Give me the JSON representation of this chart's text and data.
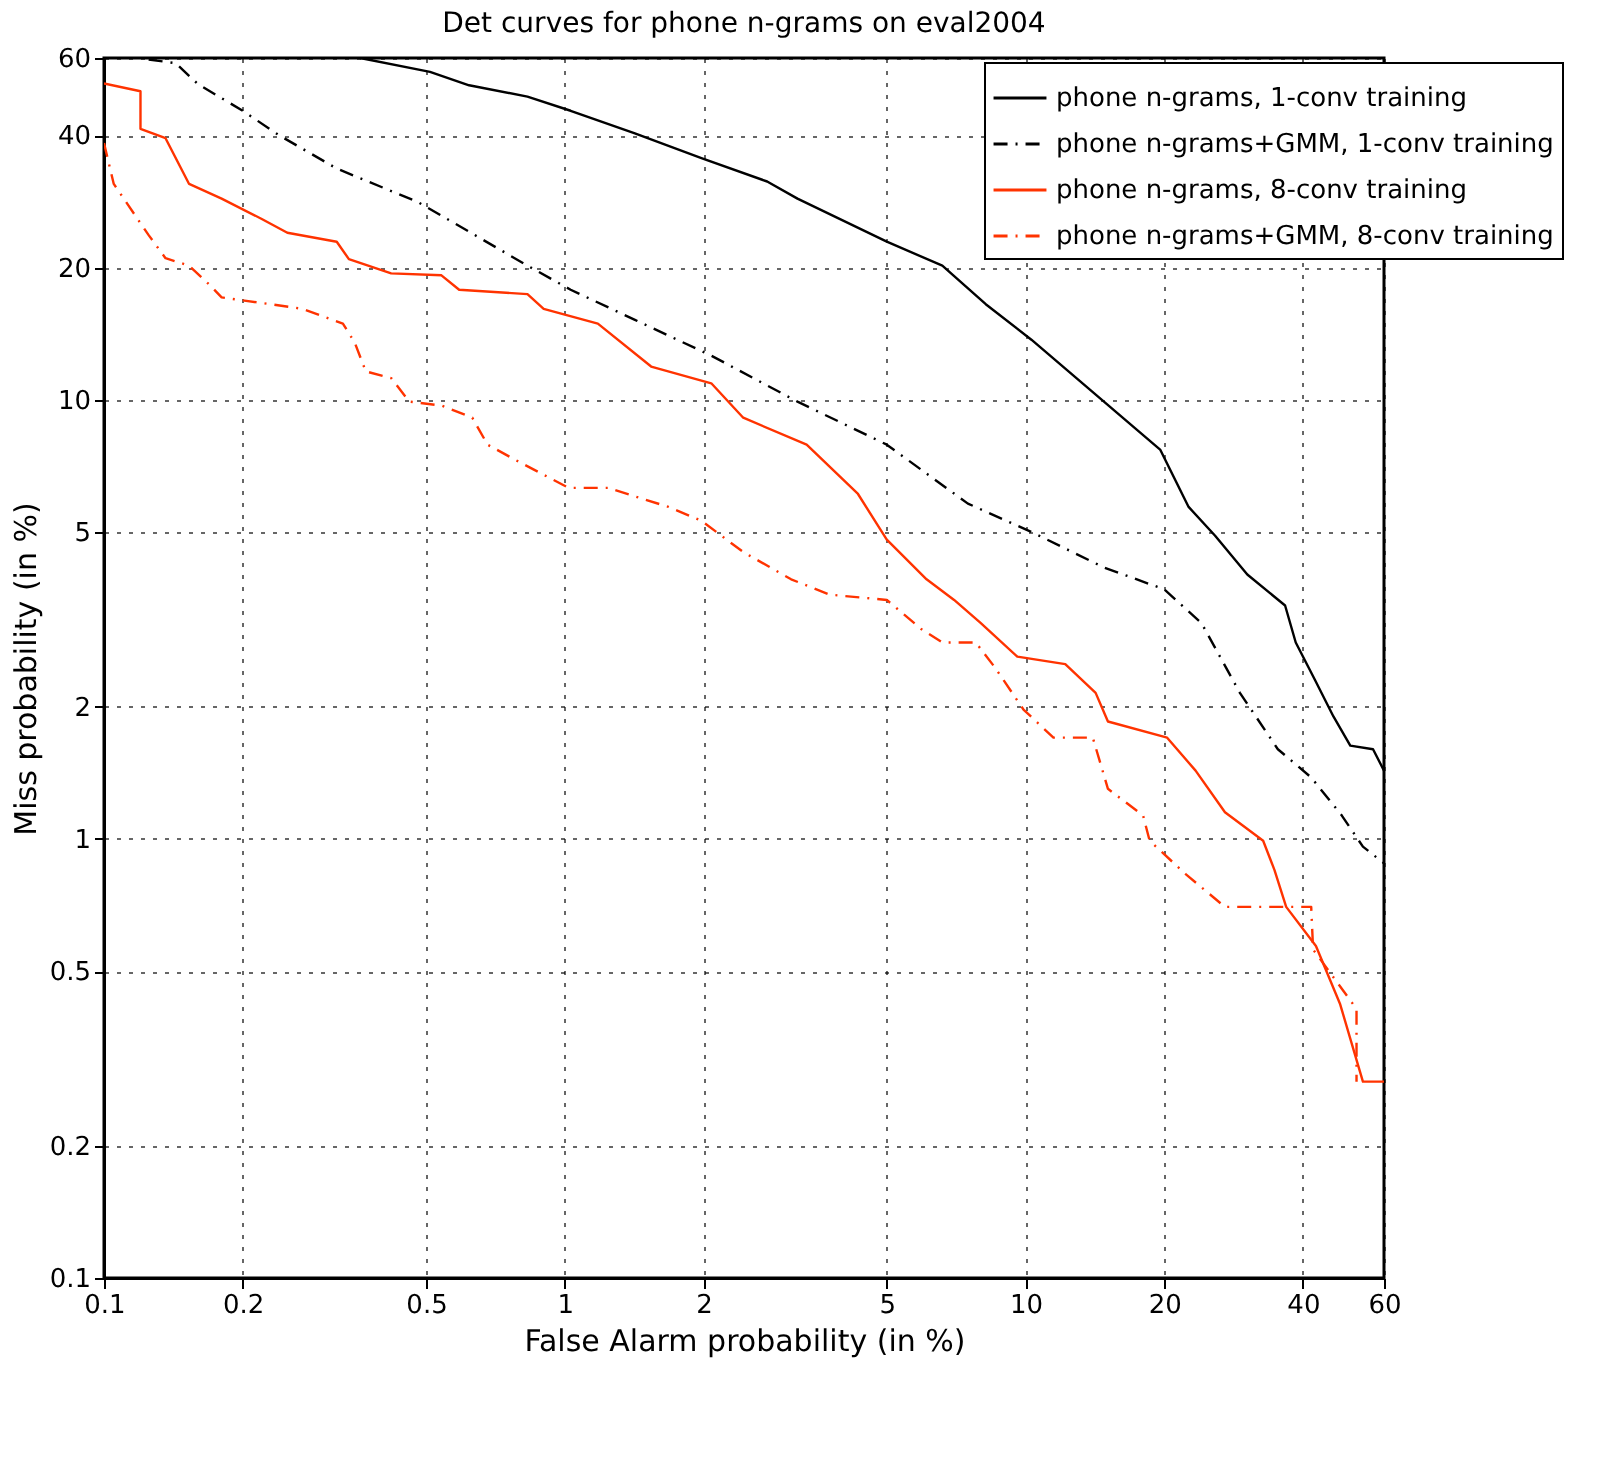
{
  "chart_data": {
    "type": "line",
    "title": "Det curves for phone n-grams on eval2004",
    "xlabel": "False Alarm probability (in %)",
    "ylabel": "Miss probability (in %)",
    "xlim": [
      0.1,
      60
    ],
    "ylim": [
      0.1,
      60
    ],
    "xticks": [
      0.1,
      0.2,
      0.5,
      1,
      2,
      5,
      10,
      20,
      40,
      60
    ],
    "yticks": [
      0.1,
      0.2,
      0.5,
      1,
      2,
      5,
      10,
      20,
      40,
      60
    ],
    "log": "xy",
    "grid": true,
    "legend": "top right",
    "series": [
      {
        "name": "phone n-grams, 1-conv training",
        "color": "#000000",
        "line_style": "solid",
        "x": [
          0.36,
          0.51,
          0.62,
          0.83,
          1.03,
          1.42,
          1.98,
          2.75,
          3.2,
          5.0,
          6.6,
          8.2,
          10.3,
          14.8,
          19.6,
          22.6,
          25.8,
          30.3,
          36.6,
          38.6,
          42.5,
          46.6,
          50.7,
          56.8,
          60
        ],
        "values": [
          60,
          55.8,
          52,
          49,
          45.5,
          40.4,
          35.5,
          31.4,
          28.7,
          22.9,
          20.2,
          16.5,
          13.7,
          9.9,
          7.7,
          5.7,
          4.9,
          4.0,
          3.4,
          2.8,
          2.3,
          1.9,
          1.63,
          1.6,
          1.43
        ]
      },
      {
        "name": "phone n-grams+GMM, 1-conv training",
        "color": "#000000",
        "line_style": "dashed",
        "x": [
          0.125,
          0.143,
          0.16,
          0.2,
          0.24,
          0.32,
          0.48,
          0.83,
          1.03,
          1.42,
          2.08,
          3.2,
          5.0,
          7.5,
          10.3,
          14.8,
          20,
          24.1,
          29.2,
          35.3,
          41.7,
          48.6,
          54,
          60
        ],
        "values": [
          59.5,
          58.4,
          52.3,
          45.5,
          40,
          33.6,
          28.2,
          20.2,
          17.8,
          15.2,
          12.6,
          9.9,
          7.9,
          5.8,
          5.0,
          4.15,
          3.7,
          3.1,
          2.15,
          1.6,
          1.38,
          1.13,
          0.96,
          0.88
        ]
      },
      {
        "name": "phone n-grams, 8-conv training",
        "color": "#ff3300",
        "line_style": "solid",
        "x": [
          0.1,
          0.12,
          0.12,
          0.136,
          0.153,
          0.18,
          0.22,
          0.25,
          0.32,
          0.34,
          0.42,
          0.54,
          0.59,
          0.83,
          0.9,
          1.18,
          1.54,
          2.08,
          2.44,
          3.35,
          4.33,
          5.0,
          6.1,
          7.0,
          8.0,
          9.6,
          12.2,
          14.2,
          15.1,
          20.3,
          23.4,
          27.1,
          32.8,
          34.7,
          36.8,
          42.7,
          48.2,
          54,
          60
        ],
        "values": [
          52.5,
          50.4,
          41.4,
          39.4,
          31,
          28.7,
          25.8,
          24,
          22.9,
          20.9,
          19.4,
          19.2,
          17.8,
          17.4,
          16.1,
          14.9,
          11.9,
          10.9,
          9.1,
          7.9,
          6.1,
          4.8,
          3.9,
          3.5,
          3.1,
          2.6,
          2.5,
          2.15,
          1.85,
          1.7,
          1.43,
          1.15,
          0.99,
          0.85,
          0.7,
          0.57,
          0.42,
          0.28,
          0.28
        ]
      },
      {
        "name": "phone n-grams+GMM, 8-conv training",
        "color": "#ff3300",
        "line_style": "dashed",
        "x": [
          0.1,
          0.105,
          0.125,
          0.136,
          0.153,
          0.17,
          0.18,
          0.23,
          0.27,
          0.33,
          0.35,
          0.37,
          0.42,
          0.46,
          0.54,
          0.63,
          0.68,
          0.78,
          1.02,
          1.24,
          1.68,
          1.98,
          2.44,
          3.1,
          3.75,
          5.0,
          5.95,
          6.6,
          7.8,
          8.6,
          9.9,
          11.5,
          14,
          15.1,
          18,
          18.6,
          22.3,
          27.1,
          41.7,
          42.1,
          52.3,
          52.3
        ],
        "values": [
          38.4,
          31,
          23.7,
          21,
          20.2,
          18.2,
          17.1,
          16.5,
          16.1,
          14.9,
          13.5,
          11.6,
          11.2,
          9.9,
          9.7,
          9.1,
          7.9,
          7.3,
          6.3,
          6.3,
          5.7,
          5.3,
          4.5,
          3.9,
          3.6,
          3.5,
          3.0,
          2.8,
          2.8,
          2.45,
          1.97,
          1.7,
          1.7,
          1.3,
          1.13,
          0.99,
          0.83,
          0.7,
          0.7,
          0.56,
          0.41,
          0.28
        ]
      }
    ]
  }
}
